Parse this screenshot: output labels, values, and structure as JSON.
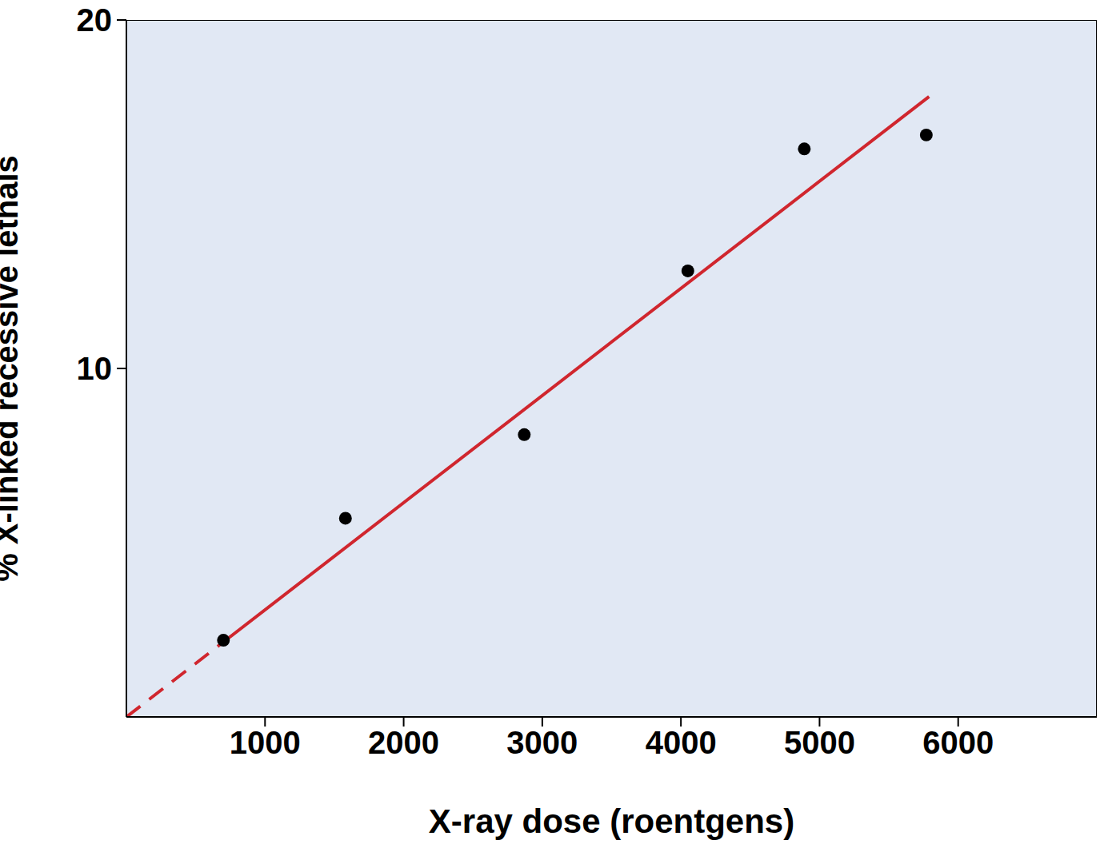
{
  "chart_data": {
    "type": "scatter",
    "x_label": "X-ray dose (roentgens)",
    "y_label": "% X-linked recessive lethals",
    "xlim": [
      0,
      7000
    ],
    "xticks": [
      1000,
      2000,
      3000,
      4000,
      5000,
      6000
    ],
    "ylim": [
      0,
      20
    ],
    "yticks": [
      10,
      20
    ],
    "series": [
      {
        "type": "scatter",
        "marker": "circle",
        "color": "#000000",
        "x": [
          700,
          1580,
          2870,
          4050,
          4890,
          5770
        ],
        "values": [
          2.2,
          5.7,
          8.1,
          12.8,
          16.3,
          16.7
        ]
      },
      {
        "type": "line",
        "line_style": "dashed",
        "color": "#d0262e",
        "x": [
          0,
          700
        ],
        "values": [
          0,
          2.15
        ]
      },
      {
        "type": "line",
        "line_style": "solid",
        "color": "#d0262e",
        "x": [
          700,
          5790
        ],
        "values": [
          2.15,
          17.8
        ]
      }
    ]
  }
}
